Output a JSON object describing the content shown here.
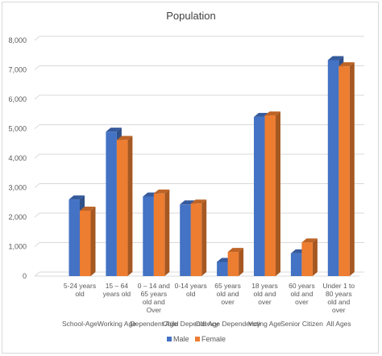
{
  "chart_data": {
    "type": "bar",
    "title": "Population",
    "xlabel": "",
    "ylabel": "",
    "ylim": [
      0,
      8000
    ],
    "yticks": [
      "0",
      "1,000",
      "2,000",
      "3,000",
      "4,000",
      "5,000",
      "6,000",
      "7,000",
      "8,000"
    ],
    "ytick_values": [
      0,
      1000,
      2000,
      3000,
      4000,
      5000,
      6000,
      7000,
      8000
    ],
    "grid": true,
    "legend_position": "bottom",
    "categories": [
      {
        "sub": [
          "5-24 years",
          "old"
        ],
        "group": "School-Age"
      },
      {
        "sub": [
          "15 – 64",
          "years old"
        ],
        "group": "Working Age"
      },
      {
        "sub": [
          "0 – 14 and",
          "65 years",
          "old and",
          "Over"
        ],
        "group": "Dependent Age"
      },
      {
        "sub": [
          "0-14 years",
          "old"
        ],
        "group": "Child Dependency"
      },
      {
        "sub": [
          "65 years",
          "old and",
          "over"
        ],
        "group": "Old-Age Dependency"
      },
      {
        "sub": [
          "18 years",
          "old and",
          "over"
        ],
        "group": "Voting Age"
      },
      {
        "sub": [
          "60 years",
          "old and",
          "over"
        ],
        "group": "Senior Citizen"
      },
      {
        "sub": [
          "Under 1 to",
          "80 years",
          "old and",
          "over"
        ],
        "group": "All Ages"
      }
    ],
    "series": [
      {
        "name": "Male",
        "color": "#4472c4",
        "values": [
          2600,
          4900,
          2700,
          2430,
          480,
          5400,
          770,
          7330
        ]
      },
      {
        "name": "Female",
        "color": "#ed7d31",
        "values": [
          2220,
          4620,
          2800,
          2460,
          820,
          5450,
          1140,
          7120
        ]
      }
    ]
  }
}
